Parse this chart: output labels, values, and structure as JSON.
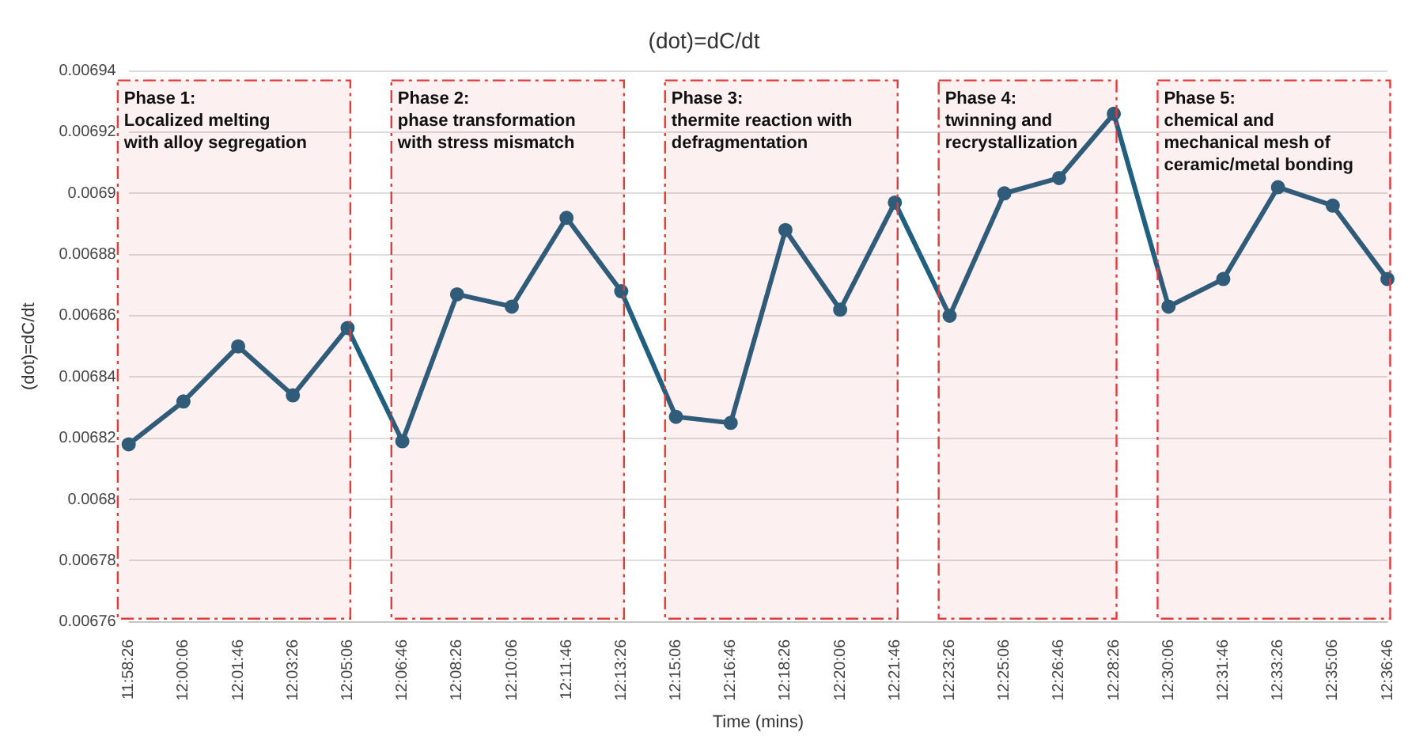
{
  "chart_data": {
    "type": "line",
    "title": "(dot)=dC/dt",
    "xlabel": "Time (mins)",
    "ylabel": "(dot)=dC/dt",
    "categories": [
      "11:58:26",
      "12:00:06",
      "12:01:46",
      "12:03:26",
      "12:05:06",
      "12:06:46",
      "12:08:26",
      "12:10:06",
      "12:11:46",
      "12:13:26",
      "12:15:06",
      "12:16:46",
      "12:18:26",
      "12:20:06",
      "12:21:46",
      "12:23:26",
      "12:25:06",
      "12:26:46",
      "12:28:26",
      "12:30:06",
      "12:31:46",
      "12:33:26",
      "12:35:06",
      "12:36:46"
    ],
    "series": [
      {
        "color": "#215f7e",
        "values": [
          0.006818,
          0.006832,
          0.00685,
          0.006834,
          0.006856,
          0.006819,
          0.006867,
          0.006863,
          0.006892,
          0.006868,
          0.006827,
          0.006825,
          0.006888,
          0.006862,
          0.006897,
          0.00686,
          0.0069,
          0.006905,
          0.006926,
          0.006863,
          0.006872,
          0.006902,
          0.006896,
          0.006872
        ]
      }
    ],
    "ylim": [
      0.00676,
      0.00694
    ],
    "yticks": [
      0.00676,
      0.00678,
      0.0068,
      0.00682,
      0.00684,
      0.00686,
      0.00688,
      0.0069,
      0.00692,
      0.00694
    ],
    "grid": "y",
    "legend": false,
    "marker": "circle",
    "line_style": "solid",
    "bands": [
      {
        "axis": "x",
        "from": "11:58:26",
        "to": "12:05:06",
        "label": "Phase 1:\nLocalized melting\nwith alloy segregation",
        "color": "#e03c3c"
      },
      {
        "axis": "x",
        "from": "12:06:46",
        "to": "12:13:26",
        "label": "Phase 2:\nphase transformation\nwith stress mismatch",
        "color": "#e03c3c"
      },
      {
        "axis": "x",
        "from": "12:15:06",
        "to": "12:21:46",
        "label": "Phase 3:\nthermite reaction with\ndefragmentation",
        "color": "#e03c3c"
      },
      {
        "axis": "x",
        "from": "12:23:26",
        "to": "12:28:26",
        "label": "Phase 4:\ntwinning and\nrecrystallization",
        "color": "#e03c3c"
      },
      {
        "axis": "x",
        "from": "12:30:06",
        "to": "12:36:46",
        "label": "Phase 5:\nchemical and\nmechanical mesh of\nceramic/metal bonding",
        "color": "#e03c3c"
      }
    ]
  }
}
